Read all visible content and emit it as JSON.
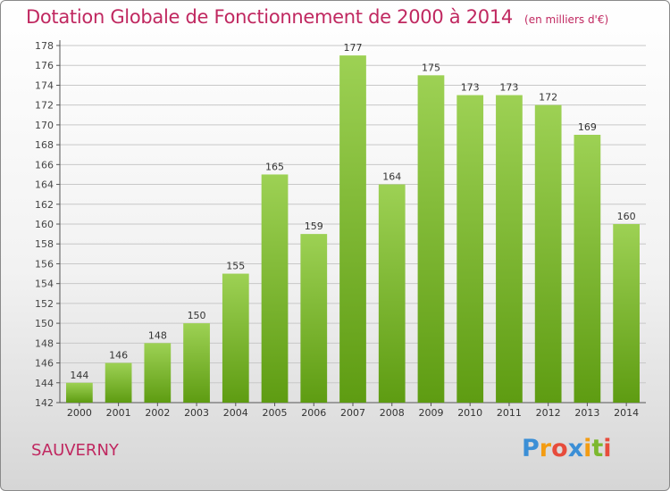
{
  "title": "Dotation Globale de Fonctionnement de 2000 à 2014",
  "subtitle": "(en milliers d'€)",
  "commune": "SAUVERNY",
  "logo": {
    "letters": [
      "P",
      "r",
      "o",
      "x",
      "i",
      "t",
      "i"
    ],
    "colors": [
      "#3b8fd6",
      "#f39c12",
      "#e74c3c",
      "#3b8fd6",
      "#f39c12",
      "#7cb82f",
      "#e74c3c"
    ]
  },
  "colors": {
    "accent": "#c02860",
    "bar_top": "#9dd154",
    "bar_bottom": "#5e9c12",
    "grid": "#c8c8c8"
  },
  "chart_data": {
    "type": "bar",
    "categories": [
      "2000",
      "2001",
      "2002",
      "2003",
      "2004",
      "2005",
      "2006",
      "2007",
      "2008",
      "2009",
      "2010",
      "2011",
      "2012",
      "2013",
      "2014"
    ],
    "values": [
      144,
      146,
      148,
      150,
      155,
      165,
      159,
      177,
      164,
      175,
      173,
      173,
      172,
      169,
      160
    ],
    "ylim": [
      142,
      178
    ],
    "yticks": [
      142,
      144,
      146,
      148,
      150,
      152,
      154,
      156,
      158,
      160,
      162,
      164,
      166,
      168,
      170,
      172,
      174,
      176,
      178
    ],
    "grid": true,
    "data_labels": true
  }
}
